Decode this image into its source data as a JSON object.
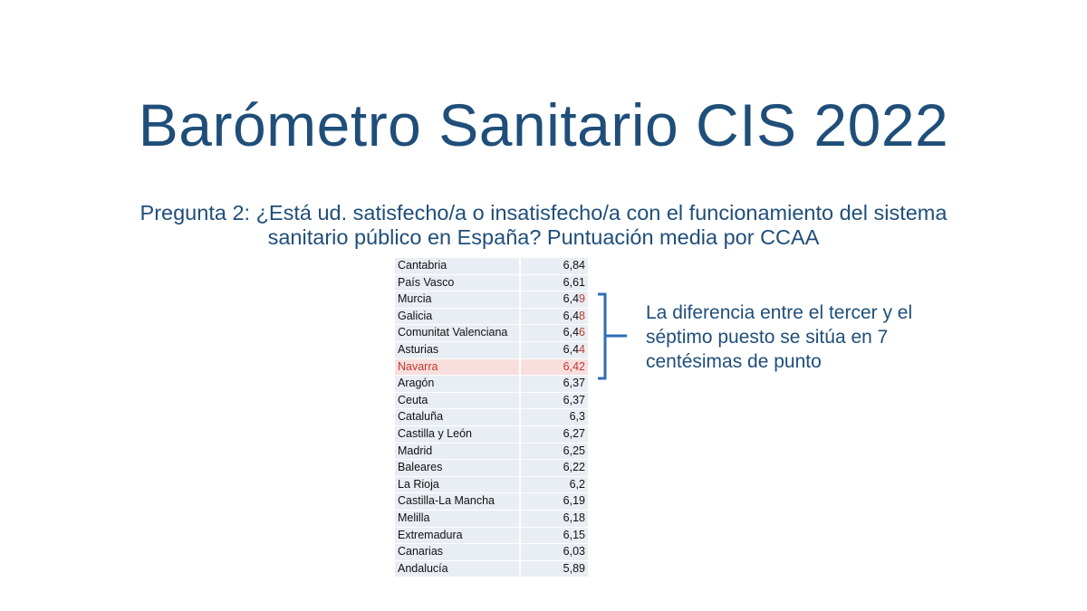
{
  "slide": {
    "title": "Barómetro Sanitario CIS 2022",
    "subtitle": "Pregunta 2: ¿Está ud. satisfecho/a o insatisfecho/a con el funcionamiento del sistema sanitario público en España? Puntuación media por CCAA",
    "note": "La diferencia entre el tercer y el séptimo puesto se sitúa en 7 centésimas de punto",
    "colors": {
      "title": "#1f4e79",
      "table_background": "#e9edf4",
      "highlight_background": "#f9dede",
      "highlight_text": "#c0392b",
      "bracket": "#2e6db4"
    }
  },
  "chart_data": {
    "type": "table",
    "columns": [
      "CCAA",
      "Puntuación media"
    ],
    "rows": [
      {
        "name": "Cantabria",
        "value": "6,84",
        "value_base": "6,84",
        "value_tail": ""
      },
      {
        "name": "País Vasco",
        "value": "6,61",
        "value_base": "6,61",
        "value_tail": ""
      },
      {
        "name": "Murcia",
        "value": "6,49",
        "value_base": "6,4",
        "value_tail": "9"
      },
      {
        "name": "Galicia",
        "value": "6,48",
        "value_base": "6,4",
        "value_tail": "8"
      },
      {
        "name": "Comunitat Valenciana",
        "value": "6,46",
        "value_base": "6,4",
        "value_tail": "6"
      },
      {
        "name": "Asturias",
        "value": "6,44",
        "value_base": "6,4",
        "value_tail": "4"
      },
      {
        "name": "Navarra",
        "value": "6,42",
        "value_base": "6,4",
        "value_tail": "2",
        "highlight": true
      },
      {
        "name": "Aragón",
        "value": "6,37",
        "value_base": "6,37",
        "value_tail": ""
      },
      {
        "name": "Ceuta",
        "value": "6,37",
        "value_base": "6,37",
        "value_tail": ""
      },
      {
        "name": "Cataluña",
        "value": "6,3",
        "value_base": "6,3",
        "value_tail": ""
      },
      {
        "name": "Castilla y León",
        "value": "6,27",
        "value_base": "6,27",
        "value_tail": ""
      },
      {
        "name": "Madrid",
        "value": "6,25",
        "value_base": "6,25",
        "value_tail": ""
      },
      {
        "name": "Baleares",
        "value": "6,22",
        "value_base": "6,22",
        "value_tail": ""
      },
      {
        "name": "La Rioja",
        "value": "6,2",
        "value_base": "6,2",
        "value_tail": ""
      },
      {
        "name": "Castilla-La Mancha",
        "value": "6,19",
        "value_base": "6,19",
        "value_tail": ""
      },
      {
        "name": "Melilla",
        "value": "6,18",
        "value_base": "6,18",
        "value_tail": ""
      },
      {
        "name": "Extremadura",
        "value": "6,15",
        "value_base": "6,15",
        "value_tail": ""
      },
      {
        "name": "Canarias",
        "value": "6,03",
        "value_base": "6,03",
        "value_tail": ""
      },
      {
        "name": "Andalucía",
        "value": "5,89",
        "value_base": "5,89",
        "value_tail": ""
      }
    ]
  }
}
